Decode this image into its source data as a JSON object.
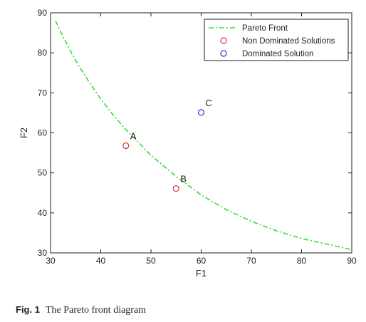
{
  "chart_data": {
    "type": "scatter",
    "title": "",
    "xlabel": "F1",
    "ylabel": "F2",
    "xlim": [
      30,
      90
    ],
    "ylim": [
      30,
      90
    ],
    "xticks": [
      30,
      40,
      50,
      60,
      70,
      80,
      90
    ],
    "yticks": [
      30,
      40,
      50,
      60,
      70,
      80,
      90
    ],
    "grid": false,
    "legend_position": "top-right",
    "series": [
      {
        "name": "Pareto Front",
        "kind": "line",
        "style": "dash-dot",
        "color": "#33dd33",
        "x": [
          31,
          32,
          33,
          34,
          35,
          36,
          38,
          40,
          42,
          45,
          48,
          50,
          55,
          60,
          65,
          70,
          75,
          80,
          85,
          90
        ],
        "y": [
          88,
          85.3,
          82.8,
          80.4,
          78.1,
          76,
          72.1,
          68.5,
          65.2,
          60.8,
          57,
          54.4,
          49.1,
          44.5,
          40.8,
          37.9,
          35.5,
          33.6,
          32.2,
          30.8
        ]
      },
      {
        "name": "Non Dominated Solutions",
        "kind": "marker",
        "marker": "circle",
        "color": "#dd3333",
        "points": [
          {
            "label": "A",
            "x": 45,
            "y": 56.8
          },
          {
            "label": "B",
            "x": 55,
            "y": 46.1
          }
        ]
      },
      {
        "name": "Dominated Solution",
        "kind": "marker",
        "marker": "circle",
        "color": "#3333cc",
        "points": [
          {
            "label": "C",
            "x": 60,
            "y": 65.1
          }
        ]
      }
    ]
  },
  "caption": {
    "number": "Fig. 1",
    "text": "The Pareto front diagram"
  }
}
